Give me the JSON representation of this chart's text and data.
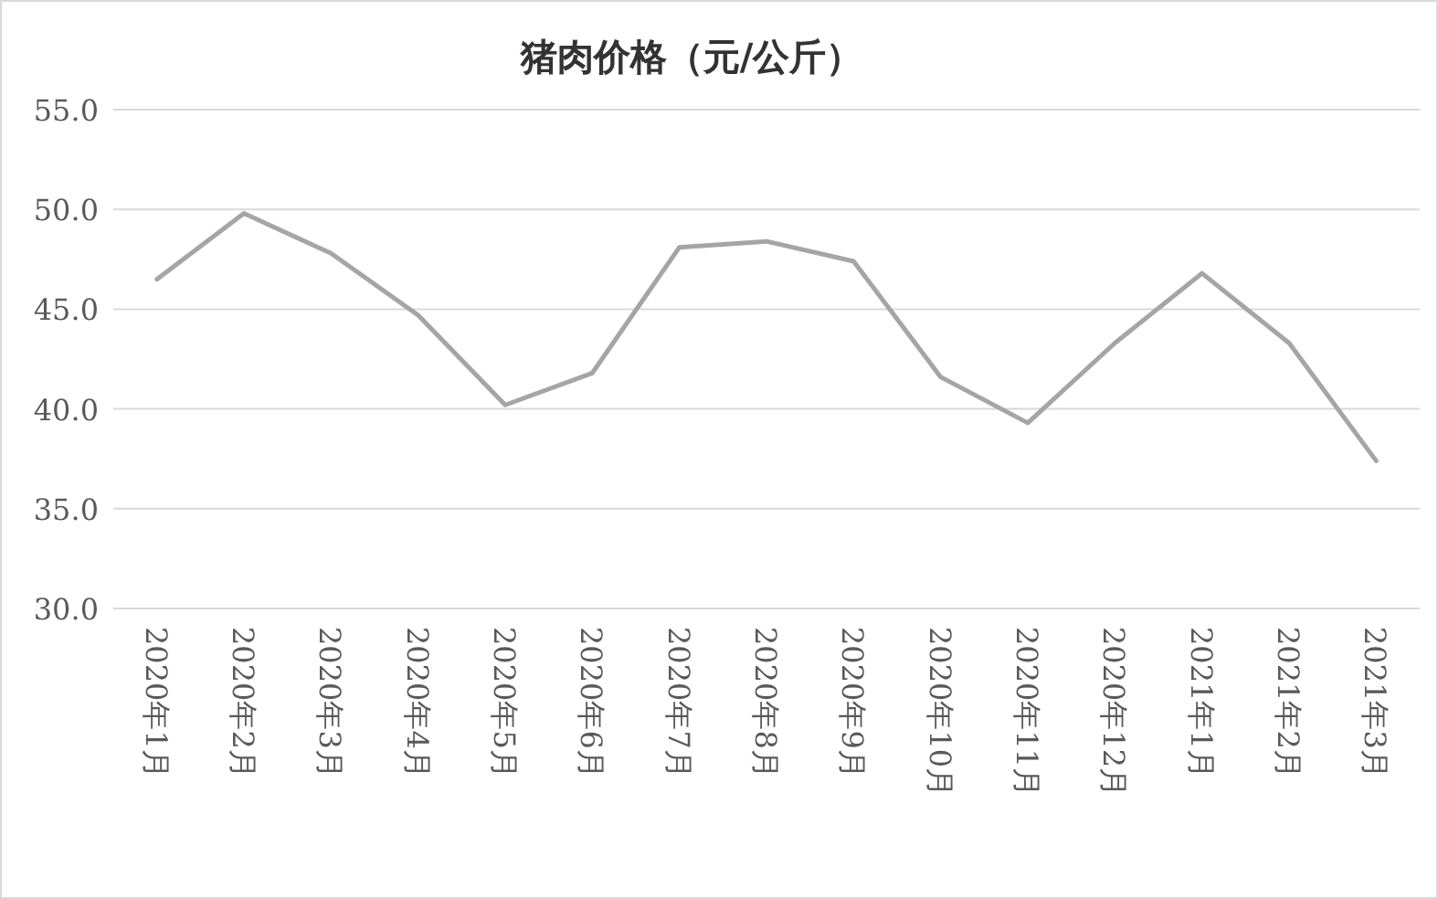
{
  "chart_data": {
    "type": "line",
    "title": "猪肉价格（元/公斤）",
    "categories": [
      "2020年1月",
      "2020年2月",
      "2020年3月",
      "2020年4月",
      "2020年5月",
      "2020年6月",
      "2020年7月",
      "2020年8月",
      "2020年9月",
      "2020年10月",
      "2020年11月",
      "2020年12月",
      "2021年1月",
      "2021年2月",
      "2021年3月"
    ],
    "series": [
      {
        "color": "#a5a5a5",
        "values": [
          46.5,
          49.8,
          47.8,
          44.7,
          40.2,
          41.8,
          48.1,
          48.4,
          47.4,
          41.6,
          39.3,
          43.3,
          46.8,
          43.3,
          37.4
        ]
      }
    ],
    "ylim": [
      30,
      55
    ],
    "yticks": [
      {
        "value": 30,
        "label": "30.0"
      },
      {
        "value": 35,
        "label": "35.0"
      },
      {
        "value": 40,
        "label": "40.0"
      },
      {
        "value": 45,
        "label": "45.0"
      },
      {
        "value": 50,
        "label": "50.0"
      },
      {
        "value": 55,
        "label": "55.0"
      }
    ],
    "grid": "y",
    "marker": "none",
    "line_style": "solid"
  }
}
